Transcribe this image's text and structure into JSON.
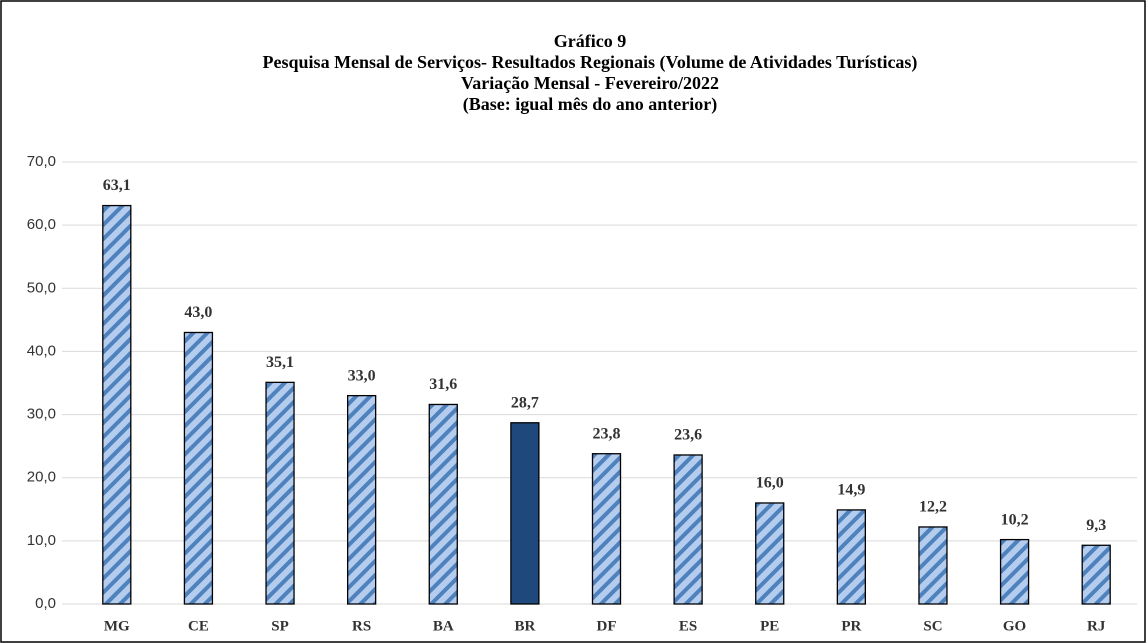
{
  "chart_data": {
    "type": "bar",
    "title": [
      "Gráfico 9",
      "Pesquisa Mensal de Serviços- Resultados Regionais (Volume de Atividades Turísticas)",
      "Variação Mensal - Fevereiro/2022",
      "(Base: igual mês do ano anterior)"
    ],
    "categories": [
      "MG",
      "CE",
      "SP",
      "RS",
      "BA",
      "BR",
      "DF",
      "ES",
      "PE",
      "PR",
      "SC",
      "GO",
      "RJ"
    ],
    "values": [
      63.1,
      43.0,
      35.1,
      33.0,
      31.6,
      28.7,
      23.8,
      23.6,
      16.0,
      14.9,
      12.2,
      10.2,
      9.3
    ],
    "value_labels": [
      "63,1",
      "43,0",
      "35,1",
      "33,0",
      "31,6",
      "28,7",
      "23,8",
      "23,6",
      "16,0",
      "14,9",
      "12,2",
      "10,2",
      "9,3"
    ],
    "color": "#b4cdee",
    "pattern_color": "#4f81bd",
    "highlight": "BR",
    "highlight_color": "#1f497d",
    "ylim": [
      0,
      70
    ],
    "yticks": [
      {
        "value": 0,
        "label": "0,0"
      },
      {
        "value": 10,
        "label": "10,0"
      },
      {
        "value": 20,
        "label": "20,0"
      },
      {
        "value": 30,
        "label": "30,0"
      },
      {
        "value": 40,
        "label": "40,0"
      },
      {
        "value": 50,
        "label": "50,0"
      },
      {
        "value": 60,
        "label": "60,0"
      },
      {
        "value": 70,
        "label": "70,0"
      }
    ],
    "grid": true
  }
}
